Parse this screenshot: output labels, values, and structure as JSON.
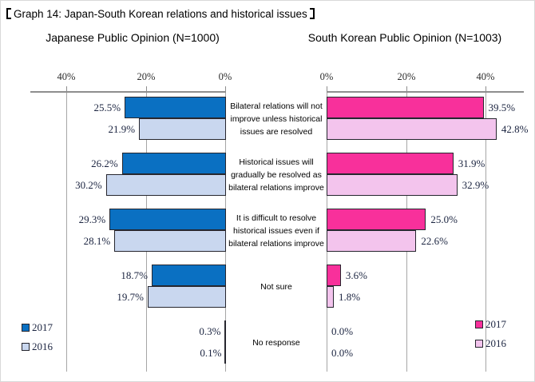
{
  "title": {
    "bracket_open": "【",
    "text": "Graph 14: Japan-South Korean relations and historical issues",
    "bracket_close": "】"
  },
  "chart_data": {
    "type": "bar",
    "layout": "diverging-horizontal",
    "grid": true,
    "categories": [
      [
        "Bilateral relations will not",
        "improve unless historical",
        "issues are resolved"
      ],
      [
        "Historical issues will",
        "gradually be resolved as",
        "bilateral relations improve"
      ],
      [
        "It is difficult to resolve",
        "historical issues even if",
        "bilateral relations improve"
      ],
      [
        "Not sure"
      ],
      [
        "No response"
      ]
    ],
    "panels": [
      {
        "id": "japan",
        "title": "Japanese Public Opinion (N=1000)",
        "direction": "left",
        "axis_max": 50,
        "axis_ticks": [
          "40%",
          "20%",
          "0%"
        ],
        "tick_values": [
          40,
          20,
          0
        ],
        "series": [
          {
            "name": "2017",
            "color": "#0a70c2",
            "values": [
              25.5,
              26.2,
              29.3,
              18.7,
              0.3
            ]
          },
          {
            "name": "2016",
            "color": "#c9d7ef",
            "values": [
              21.9,
              30.2,
              28.1,
              19.7,
              0.1
            ]
          }
        ],
        "legend": [
          {
            "label": "2017",
            "color": "#0a70c2"
          },
          {
            "label": "2016",
            "color": "#c9d7ef"
          }
        ]
      },
      {
        "id": "korea",
        "title": "South Korean Public Opinion (N=1003)",
        "direction": "right",
        "axis_max": 50,
        "axis_ticks": [
          "0%",
          "20%",
          "40%"
        ],
        "tick_values": [
          0,
          20,
          40
        ],
        "series": [
          {
            "name": "2017",
            "color": "#f8309b",
            "values": [
              39.5,
              31.9,
              25.0,
              3.6,
              0.0
            ]
          },
          {
            "name": "2016",
            "color": "#f3c4ed",
            "values": [
              42.8,
              32.9,
              22.6,
              1.8,
              0.0
            ]
          }
        ],
        "legend": [
          {
            "label": "2017",
            "color": "#f8309b"
          },
          {
            "label": "2016",
            "color": "#f3c4ed"
          }
        ]
      }
    ]
  }
}
